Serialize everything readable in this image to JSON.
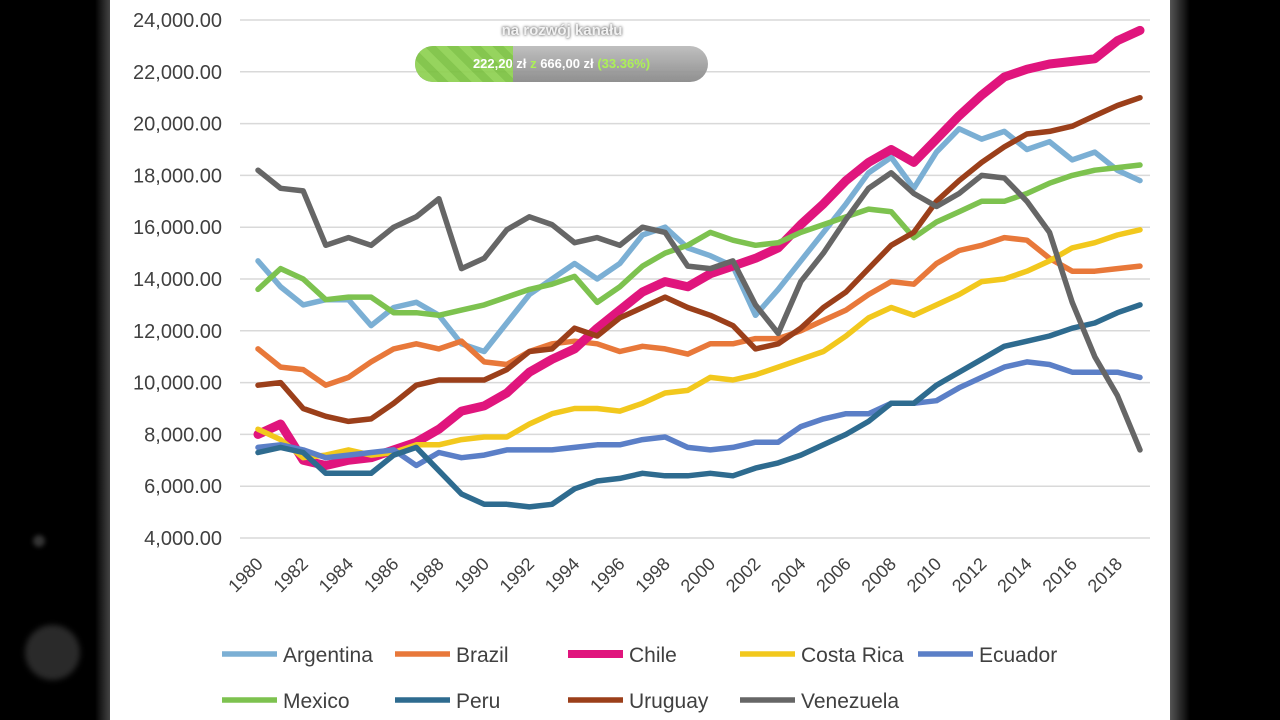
{
  "chart_data": {
    "type": "line",
    "title": "",
    "xlabel": "",
    "ylabel": "",
    "ylim": [
      4000,
      24000
    ],
    "yticks": [
      "4,000.00",
      "6,000.00",
      "8,000.00",
      "10,000.00",
      "12,000.00",
      "14,000.00",
      "16,000.00",
      "18,000.00",
      "20,000.00",
      "22,000.00",
      "24,000.00"
    ],
    "xticks": [
      "1980",
      "1982",
      "1984",
      "1986",
      "1988",
      "1990",
      "1992",
      "1994",
      "1996",
      "1998",
      "2000",
      "2002",
      "2004",
      "2006",
      "2008",
      "2010",
      "2012",
      "2014",
      "2016",
      "2018"
    ],
    "x_start": 1980,
    "x_end": 2019,
    "grid": "horizontal",
    "legend": "bottom",
    "series": [
      {
        "name": "Argentina",
        "color": "#7bafd4",
        "values": [
          14700,
          13700,
          13000,
          13200,
          13200,
          12200,
          12900,
          13100,
          12600,
          11500,
          11200,
          12300,
          13400,
          14000,
          14600,
          14000,
          14600,
          15700,
          16000,
          15200,
          14900,
          14500,
          12600,
          13600,
          14700,
          15800,
          16900,
          18100,
          18700,
          17500,
          18900,
          19800,
          19400,
          19700,
          19000,
          19300,
          18600,
          18900,
          18200,
          17800
        ]
      },
      {
        "name": "Brazil",
        "color": "#e8783a",
        "values": [
          11300,
          10600,
          10500,
          9900,
          10200,
          10800,
          11300,
          11500,
          11300,
          11600,
          10800,
          10700,
          11200,
          11500,
          11600,
          11500,
          11200,
          11400,
          11300,
          11100,
          11500,
          11500,
          11700,
          11700,
          12000,
          12400,
          12800,
          13400,
          13900,
          13800,
          14600,
          15100,
          15300,
          15600,
          15500,
          14800,
          14300,
          14300,
          14400,
          14500
        ]
      },
      {
        "name": "Chile",
        "color": "#e0157d",
        "values": [
          8000,
          8400,
          7000,
          6800,
          7000,
          7100,
          7400,
          7700,
          8200,
          8900,
          9100,
          9600,
          10400,
          10900,
          11300,
          12100,
          12800,
          13500,
          13900,
          13700,
          14200,
          14500,
          14800,
          15200,
          16100,
          16900,
          17800,
          18500,
          19000,
          18500,
          19400,
          20300,
          21100,
          21800,
          22100,
          22300,
          22400,
          22500,
          23200,
          23600
        ]
      },
      {
        "name": "Costa Rica",
        "color": "#f2c81d",
        "values": [
          8200,
          7800,
          7100,
          7200,
          7400,
          7200,
          7300,
          7600,
          7600,
          7800,
          7900,
          7900,
          8400,
          8800,
          9000,
          9000,
          8900,
          9200,
          9600,
          9700,
          10200,
          10100,
          10300,
          10600,
          10900,
          11200,
          11800,
          12500,
          12900,
          12600,
          13000,
          13400,
          13900,
          14000,
          14300,
          14700,
          15200,
          15400,
          15700,
          15900
        ]
      },
      {
        "name": "Ecuador",
        "color": "#5b7fc7",
        "values": [
          7500,
          7600,
          7400,
          7100,
          7200,
          7300,
          7400,
          6800,
          7300,
          7100,
          7200,
          7400,
          7400,
          7400,
          7500,
          7600,
          7600,
          7800,
          7900,
          7500,
          7400,
          7500,
          7700,
          7700,
          8300,
          8600,
          8800,
          8800,
          9200,
          9200,
          9300,
          9800,
          10200,
          10600,
          10800,
          10700,
          10400,
          10400,
          10400,
          10200
        ]
      },
      {
        "name": "Mexico",
        "color": "#7dc24f",
        "values": [
          13600,
          14400,
          14000,
          13200,
          13300,
          13300,
          12700,
          12700,
          12600,
          12800,
          13000,
          13300,
          13600,
          13800,
          14100,
          13100,
          13700,
          14500,
          15000,
          15300,
          15800,
          15500,
          15300,
          15400,
          15800,
          16100,
          16400,
          16700,
          16600,
          15600,
          16200,
          16600,
          17000,
          17000,
          17300,
          17700,
          18000,
          18200,
          18300,
          18400
        ]
      },
      {
        "name": "Peru",
        "color": "#2e6b8f",
        "values": [
          7300,
          7500,
          7300,
          6500,
          6500,
          6500,
          7200,
          7500,
          6600,
          5700,
          5300,
          5300,
          5200,
          5300,
          5900,
          6200,
          6300,
          6500,
          6400,
          6400,
          6500,
          6400,
          6700,
          6900,
          7200,
          7600,
          8000,
          8500,
          9200,
          9200,
          9900,
          10400,
          10900,
          11400,
          11600,
          11800,
          12100,
          12300,
          12700,
          13000
        ]
      },
      {
        "name": "Uruguay",
        "color": "#9b3f1a",
        "values": [
          9900,
          10000,
          9000,
          8700,
          8500,
          8600,
          9200,
          9900,
          10100,
          10100,
          10100,
          10500,
          11200,
          11300,
          12100,
          11800,
          12500,
          12900,
          13300,
          12900,
          12600,
          12200,
          11300,
          11500,
          12100,
          12900,
          13500,
          14400,
          15300,
          15800,
          17000,
          17800,
          18500,
          19100,
          19600,
          19700,
          19900,
          20300,
          20700,
          21000
        ]
      },
      {
        "name": "Venezuela",
        "color": "#666666",
        "values": [
          18200,
          17500,
          17400,
          15300,
          15600,
          15300,
          16000,
          16400,
          17100,
          14400,
          14800,
          15900,
          16400,
          16100,
          15400,
          15600,
          15300,
          16000,
          15800,
          14500,
          14400,
          14700,
          13000,
          11900,
          13900,
          15000,
          16300,
          17500,
          18100,
          17300,
          16800,
          17300,
          18000,
          17900,
          17000,
          15800,
          13100,
          11000,
          9500,
          7400
        ]
      }
    ]
  },
  "overlay": {
    "caption": "na rozwój kanału",
    "raised": "222,20 zł",
    "of": "z",
    "goal": "666,00 zł",
    "percent_text": "(33.36%)",
    "progress": 0.3336
  }
}
